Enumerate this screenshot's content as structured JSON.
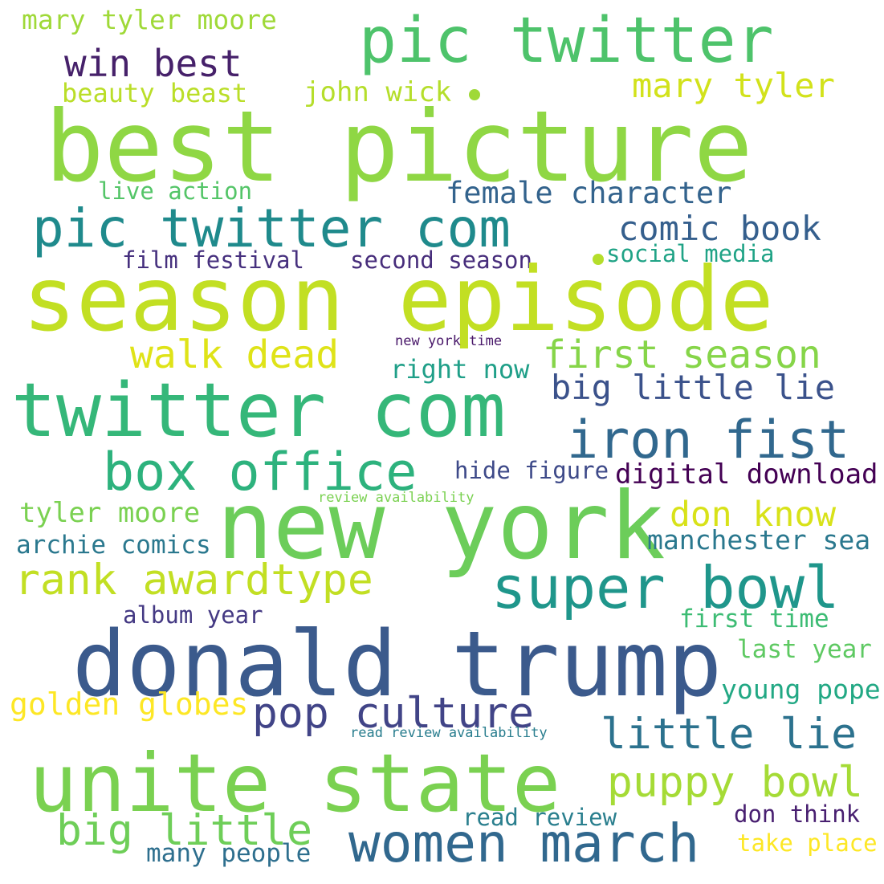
{
  "words": [
    {
      "text": "mary tyler moore",
      "color": "#9fd938"
    },
    {
      "text": "pic twitter",
      "color": "#4ec36b"
    },
    {
      "text": "win best",
      "color": "#46216a"
    },
    {
      "text": "beauty beast",
      "color": "#bade28"
    },
    {
      "text": "john wick",
      "color": "#b5de2b"
    },
    {
      "text": "mary tyler",
      "color": "#d2e21b"
    },
    {
      "text": "best picture",
      "color": "#8fd744"
    },
    {
      "text": "live action",
      "color": "#54c568"
    },
    {
      "text": "female character",
      "color": "#33638d"
    },
    {
      "text": "pic twitter com",
      "color": "#1f8a8c"
    },
    {
      "text": "comic book",
      "color": "#355f8d"
    },
    {
      "text": "film festival",
      "color": "#46307e"
    },
    {
      "text": "second season",
      "color": "#472d7b"
    },
    {
      "text": "social media",
      "color": "#20a386"
    },
    {
      "text": "season episode",
      "color": "#c2df23"
    },
    {
      "text": "new york time",
      "color": "#481769"
    },
    {
      "text": "walk dead",
      "color": "#dfe318"
    },
    {
      "text": "first season",
      "color": "#86d549"
    },
    {
      "text": "right now",
      "color": "#1f9f88"
    },
    {
      "text": "big little lie",
      "color": "#3b528b"
    },
    {
      "text": "twitter com",
      "color": "#35b779"
    },
    {
      "text": "iron fist",
      "color": "#31688e"
    },
    {
      "text": "box office",
      "color": "#2db27d"
    },
    {
      "text": "hide figure",
      "color": "#3e4a89"
    },
    {
      "text": "digital download",
      "color": "#440154"
    },
    {
      "text": "review availability",
      "color": "#7ad151"
    },
    {
      "text": "new york",
      "color": "#6ccd5a"
    },
    {
      "text": "tyler moore",
      "color": "#7ad151"
    },
    {
      "text": "don know",
      "color": "#d8e219"
    },
    {
      "text": "archie comics",
      "color": "#2a788e"
    },
    {
      "text": "manchester sea",
      "color": "#2a788e"
    },
    {
      "text": "rank awardtype",
      "color": "#c2df23"
    },
    {
      "text": "super bowl",
      "color": "#1f968b"
    },
    {
      "text": "album year",
      "color": "#443983"
    },
    {
      "text": "first time",
      "color": "#3dbc74"
    },
    {
      "text": "donald trump",
      "color": "#3b5a8c"
    },
    {
      "text": "last year",
      "color": "#5ec962"
    },
    {
      "text": "golden globes",
      "color": "#fde725"
    },
    {
      "text": "young pope",
      "color": "#22a884"
    },
    {
      "text": "pop culture",
      "color": "#414487"
    },
    {
      "text": "read review availability",
      "color": "#287d8e"
    },
    {
      "text": "little lie",
      "color": "#2c728e"
    },
    {
      "text": "unite state",
      "color": "#7ad151"
    },
    {
      "text": "puppy bowl",
      "color": "#a5db36"
    },
    {
      "text": "big little",
      "color": "#6ece58"
    },
    {
      "text": "women march",
      "color": "#31688e"
    },
    {
      "text": "read review",
      "color": "#2a7f8e"
    },
    {
      "text": "don think",
      "color": "#481f70"
    },
    {
      "text": "many people",
      "color": "#2e6f8e"
    },
    {
      "text": "take place",
      "color": "#fde725"
    }
  ],
  "dots": [
    {
      "color": "#9fd938"
    },
    {
      "color": "#b5de2b"
    }
  ]
}
